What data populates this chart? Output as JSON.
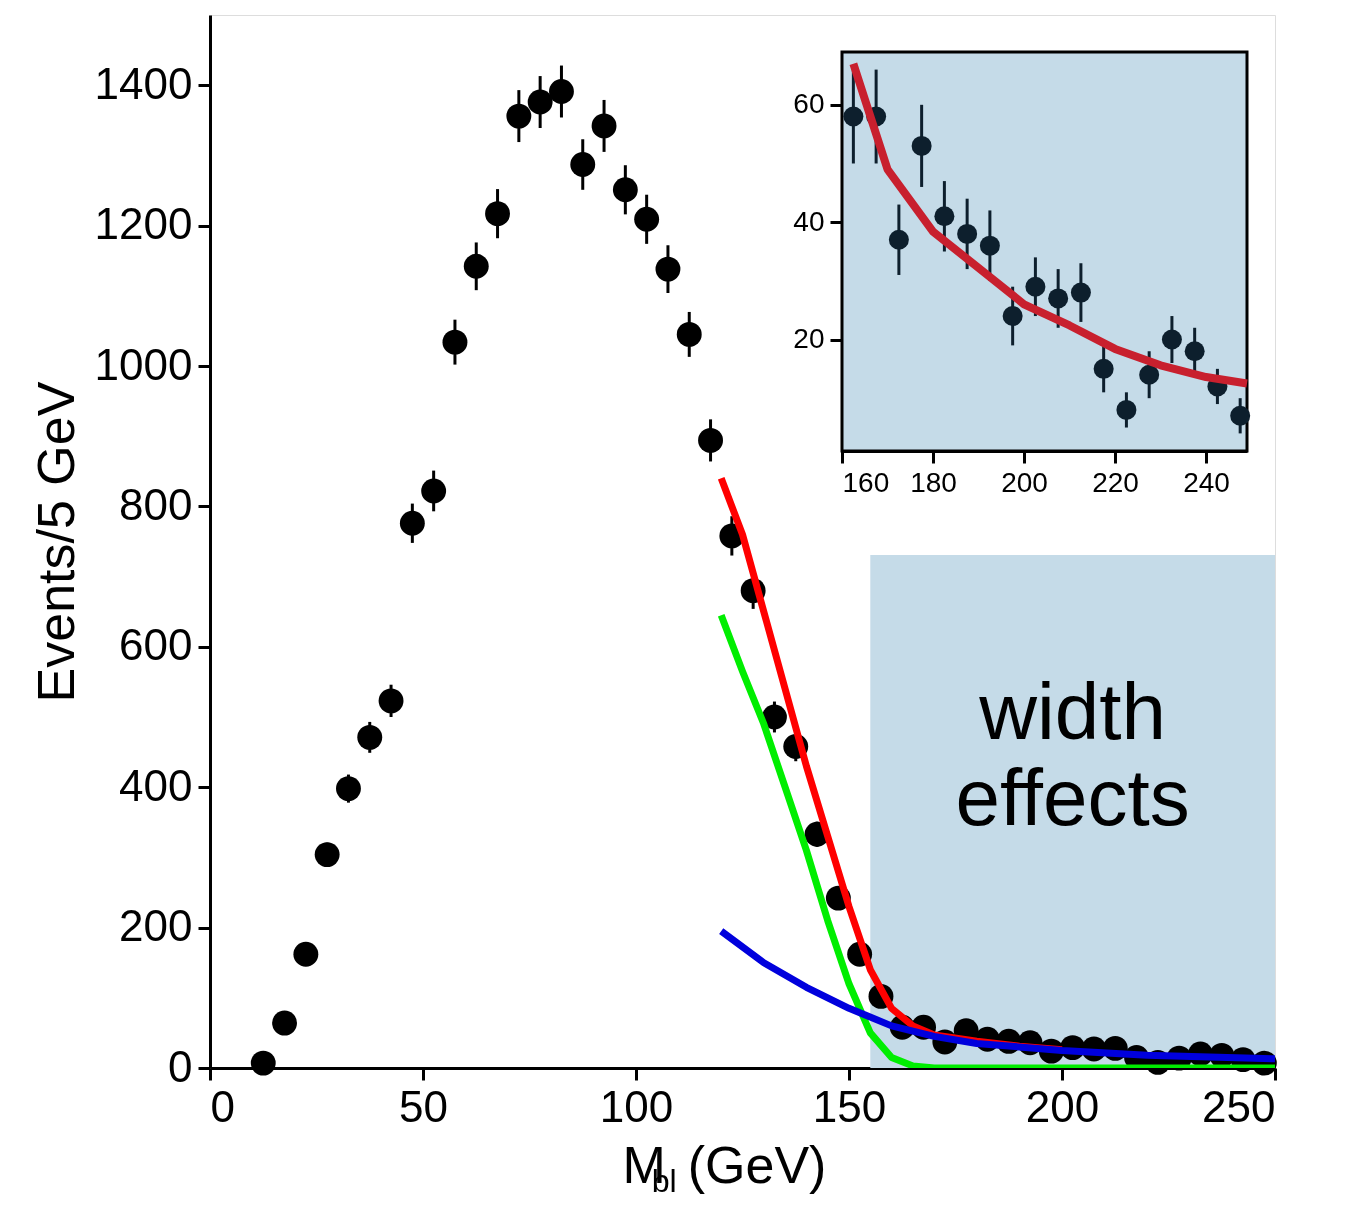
{
  "chart_data": [
    {
      "type": "scatter",
      "xlabel": "M$_{bl}$ (GeV)",
      "ylabel": "Events/5 GeV",
      "xlim": [
        0,
        250
      ],
      "ylim": [
        0,
        1500
      ],
      "xticks": [
        0,
        50,
        100,
        150,
        200,
        250
      ],
      "yticks": [
        0,
        200,
        400,
        600,
        800,
        {
          "value": 1000,
          "label": "1000"
        },
        {
          "value": 1200,
          "label": "1200"
        },
        {
          "value": 1400,
          "label": "1400"
        }
      ],
      "bands": [
        {
          "axis": "x",
          "from": 155,
          "to": 250,
          "label": "width effects",
          "color": "#c5dbe8"
        }
      ],
      "series": [
        {
          "marker": "circle",
          "color": "#000000",
          "x": [
            12.5,
            17.5,
            22.5,
            27.5,
            32.5,
            37.5,
            42.5,
            47.5,
            52.5,
            57.5,
            62.5,
            67.5,
            72.5,
            77.5,
            82.5,
            87.5,
            92.5,
            97.5,
            102.5,
            107.5,
            112.5,
            117.5,
            122.5,
            127.5,
            132.5,
            137.5,
            142.5,
            147.5,
            152.5,
            157.5,
            162.5,
            167.5,
            172.5,
            177.5,
            182.5,
            187.5,
            192.5,
            197.5,
            202.5,
            207.5,
            212.5,
            217.5,
            222.5,
            227.5,
            232.5,
            237.5,
            242.5,
            247.5
          ],
          "values": [
            7,
            64,
            162,
            304,
            398,
            471,
            523,
            776,
            822,
            1034,
            1142,
            1217,
            1356,
            1376,
            1391,
            1287,
            1342,
            1251,
            1209,
            1138,
            1045,
            894,
            758,
            680,
            500,
            458,
            333,
            242,
            162,
            102,
            58,
            58,
            37,
            53,
            41,
            38,
            36,
            24,
            29,
            27,
            28,
            15,
            8,
            14,
            20,
            18,
            12,
            7
          ],
          "errors": [
            null,
            null,
            null,
            17,
            20,
            22,
            23,
            28,
            29,
            32,
            34,
            35,
            37,
            37,
            37,
            36,
            37,
            35,
            35,
            34,
            32,
            30,
            28,
            26,
            22,
            21,
            18,
            16,
            13,
            10,
            null,
            null,
            null,
            null,
            null,
            null,
            null,
            null,
            null,
            null,
            null,
            null,
            null,
            null,
            null,
            null,
            null,
            null
          ]
        },
        {
          "type": "line",
          "color": "#ff0000",
          "x": [
            120,
            125,
            130,
            135,
            140,
            145,
            150,
            155,
            160,
            165,
            170,
            180,
            190,
            200
          ],
          "values": [
            840,
            760,
            650,
            540,
            430,
            330,
            230,
            140,
            85,
            60,
            47,
            38,
            31,
            26
          ]
        },
        {
          "type": "line",
          "color": "#00ee00",
          "x": [
            120,
            125,
            130,
            135,
            140,
            145,
            150,
            155,
            160,
            165,
            170,
            250
          ],
          "values": [
            645,
            565,
            490,
            400,
            310,
            210,
            120,
            50,
            15,
            3,
            0,
            0
          ]
        },
        {
          "type": "line",
          "color": "#0000dd",
          "x": [
            120,
            130,
            140,
            150,
            160,
            170,
            180,
            200,
            220,
            250
          ],
          "values": [
            195,
            150,
            115,
            85,
            60,
            45,
            35,
            25,
            18,
            13
          ]
        }
      ]
    },
    {
      "type": "scatter",
      "xlim": [
        160,
        249
      ],
      "ylim": [
        1,
        69
      ],
      "xticks": [
        160,
        180,
        200,
        220,
        240
      ],
      "yticks": [
        20,
        40,
        60
      ],
      "series": [
        {
          "marker": "circle",
          "color": "#0d1f2d",
          "x": [
            162.5,
            167.5,
            172.5,
            177.5,
            182.5,
            187.5,
            192.5,
            197.5,
            202.5,
            207.5,
            212.5,
            217.5,
            222.5,
            227.5,
            232.5,
            237.5,
            242.5,
            247.5
          ],
          "values": [
            58,
            58,
            37,
            53,
            41,
            38,
            36,
            24,
            29,
            27,
            28,
            15,
            8,
            14,
            20,
            18,
            12,
            7
          ],
          "errors": [
            8,
            8,
            6,
            7,
            6,
            6,
            6,
            5,
            5,
            5,
            5,
            4,
            3,
            4,
            4,
            4,
            3,
            3
          ]
        },
        {
          "type": "line",
          "color": "#c8202e",
          "x": [
            162.5,
            165,
            170,
            180,
            190,
            200,
            210,
            220,
            230,
            240,
            249
          ],
          "values": [
            67,
            61,
            49,
            38.4,
            32.2,
            26,
            22.4,
            18.4,
            15.6,
            13.6,
            12.5
          ]
        }
      ]
    }
  ]
}
